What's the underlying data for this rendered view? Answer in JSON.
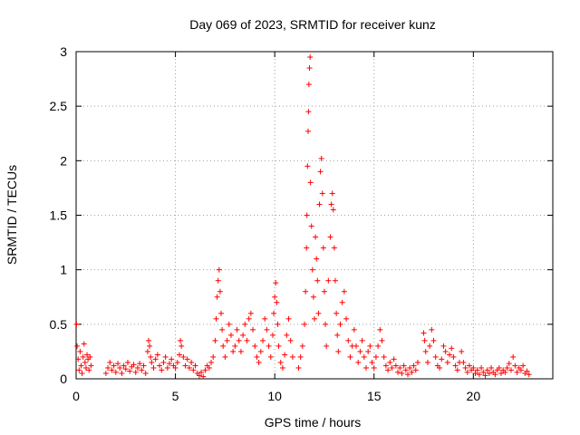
{
  "chart_data": {
    "type": "scatter",
    "title": "Day 069 of 2023, SRMTID for receiver kunz",
    "xlabel": "GPS time / hours",
    "ylabel": "SRMTID / TECUs",
    "xlim": [
      0,
      24
    ],
    "ylim": [
      0,
      3
    ],
    "xticks": [
      0,
      5,
      10,
      15,
      20
    ],
    "yticks": [
      0,
      0.5,
      1,
      1.5,
      2,
      2.5,
      3
    ],
    "xtick_labels": [
      "0",
      "5",
      "10",
      "15",
      "20"
    ],
    "ytick_labels": [
      "0",
      "0.5",
      "1",
      "1.5",
      "2",
      "2.5",
      "3"
    ],
    "grid": true,
    "marker": "+",
    "color": "#ff0000",
    "series": [
      {
        "name": "SRMTID",
        "points": [
          [
            0.02,
            0.5
          ],
          [
            0.05,
            0.3
          ],
          [
            0.1,
            0.18
          ],
          [
            0.15,
            0.08
          ],
          [
            0.2,
            0.25
          ],
          [
            0.25,
            0.12
          ],
          [
            0.3,
            0.05
          ],
          [
            0.35,
            0.2
          ],
          [
            0.4,
            0.32
          ],
          [
            0.45,
            0.15
          ],
          [
            0.5,
            0.1
          ],
          [
            0.55,
            0.22
          ],
          [
            0.6,
            0.18
          ],
          [
            0.65,
            0.08
          ],
          [
            0.7,
            0.2
          ],
          [
            0.75,
            0.12
          ],
          [
            1.5,
            0.05
          ],
          [
            1.6,
            0.1
          ],
          [
            1.7,
            0.15
          ],
          [
            1.8,
            0.08
          ],
          [
            1.9,
            0.12
          ],
          [
            2.0,
            0.06
          ],
          [
            2.1,
            0.14
          ],
          [
            2.2,
            0.1
          ],
          [
            2.3,
            0.05
          ],
          [
            2.4,
            0.12
          ],
          [
            2.5,
            0.09
          ],
          [
            2.6,
            0.15
          ],
          [
            2.7,
            0.07
          ],
          [
            2.8,
            0.11
          ],
          [
            2.9,
            0.13
          ],
          [
            3.0,
            0.06
          ],
          [
            3.1,
            0.1
          ],
          [
            3.2,
            0.14
          ],
          [
            3.3,
            0.08
          ],
          [
            3.4,
            0.12
          ],
          [
            3.5,
            0.05
          ],
          [
            3.6,
            0.25
          ],
          [
            3.65,
            0.35
          ],
          [
            3.7,
            0.3
          ],
          [
            3.75,
            0.2
          ],
          [
            3.8,
            0.15
          ],
          [
            3.9,
            0.1
          ],
          [
            4.0,
            0.18
          ],
          [
            4.1,
            0.22
          ],
          [
            4.2,
            0.12
          ],
          [
            4.3,
            0.08
          ],
          [
            4.4,
            0.15
          ],
          [
            4.5,
            0.2
          ],
          [
            4.6,
            0.1
          ],
          [
            4.7,
            0.14
          ],
          [
            4.8,
            0.18
          ],
          [
            4.9,
            0.12
          ],
          [
            5.0,
            0.1
          ],
          [
            5.1,
            0.15
          ],
          [
            5.2,
            0.22
          ],
          [
            5.25,
            0.35
          ],
          [
            5.3,
            0.3
          ],
          [
            5.4,
            0.2
          ],
          [
            5.5,
            0.12
          ],
          [
            5.6,
            0.18
          ],
          [
            5.7,
            0.1
          ],
          [
            5.8,
            0.15
          ],
          [
            5.9,
            0.08
          ],
          [
            6.0,
            0.12
          ],
          [
            6.1,
            0.05
          ],
          [
            6.2,
            0.03
          ],
          [
            6.3,
            0.06
          ],
          [
            6.4,
            0.02
          ],
          [
            6.5,
            0.08
          ],
          [
            6.6,
            0.12
          ],
          [
            6.7,
            0.1
          ],
          [
            6.8,
            0.15
          ],
          [
            6.9,
            0.2
          ],
          [
            7.0,
            0.35
          ],
          [
            7.05,
            0.55
          ],
          [
            7.1,
            0.75
          ],
          [
            7.15,
            0.9
          ],
          [
            7.2,
            1.0
          ],
          [
            7.25,
            0.8
          ],
          [
            7.3,
            0.6
          ],
          [
            7.35,
            0.45
          ],
          [
            7.4,
            0.3
          ],
          [
            7.5,
            0.2
          ],
          [
            7.6,
            0.35
          ],
          [
            7.7,
            0.5
          ],
          [
            7.8,
            0.4
          ],
          [
            7.9,
            0.25
          ],
          [
            8.0,
            0.3
          ],
          [
            8.1,
            0.45
          ],
          [
            8.2,
            0.35
          ],
          [
            8.3,
            0.25
          ],
          [
            8.4,
            0.4
          ],
          [
            8.5,
            0.5
          ],
          [
            8.6,
            0.35
          ],
          [
            8.7,
            0.55
          ],
          [
            8.8,
            0.6
          ],
          [
            8.9,
            0.45
          ],
          [
            9.0,
            0.3
          ],
          [
            9.1,
            0.2
          ],
          [
            9.2,
            0.15
          ],
          [
            9.3,
            0.25
          ],
          [
            9.4,
            0.35
          ],
          [
            9.5,
            0.55
          ],
          [
            9.6,
            0.45
          ],
          [
            9.7,
            0.3
          ],
          [
            9.8,
            0.2
          ],
          [
            9.9,
            0.4
          ],
          [
            9.95,
            0.6
          ],
          [
            10.0,
            0.75
          ],
          [
            10.05,
            0.88
          ],
          [
            10.1,
            0.7
          ],
          [
            10.15,
            0.5
          ],
          [
            10.2,
            0.3
          ],
          [
            10.3,
            0.15
          ],
          [
            10.4,
            0.1
          ],
          [
            10.5,
            0.22
          ],
          [
            10.6,
            0.4
          ],
          [
            10.7,
            0.55
          ],
          [
            10.8,
            0.35
          ],
          [
            10.9,
            0.2
          ],
          [
            11.2,
            0.1
          ],
          [
            11.3,
            0.2
          ],
          [
            11.4,
            0.3
          ],
          [
            11.5,
            0.5
          ],
          [
            11.55,
            0.8
          ],
          [
            11.6,
            1.2
          ],
          [
            11.62,
            1.5
          ],
          [
            11.65,
            1.95
          ],
          [
            11.68,
            2.27
          ],
          [
            11.7,
            2.45
          ],
          [
            11.72,
            2.7
          ],
          [
            11.75,
            2.85
          ],
          [
            11.78,
            2.95
          ],
          [
            11.8,
            1.8
          ],
          [
            11.85,
            1.4
          ],
          [
            11.9,
            1.0
          ],
          [
            11.95,
            0.75
          ],
          [
            12.0,
            0.55
          ],
          [
            12.05,
            1.3
          ],
          [
            12.1,
            1.1
          ],
          [
            12.15,
            0.9
          ],
          [
            12.2,
            0.6
          ],
          [
            12.25,
            1.6
          ],
          [
            12.3,
            1.9
          ],
          [
            12.35,
            2.02
          ],
          [
            12.4,
            1.7
          ],
          [
            12.45,
            1.2
          ],
          [
            12.5,
            0.8
          ],
          [
            12.55,
            0.5
          ],
          [
            12.6,
            0.3
          ],
          [
            12.7,
            0.9
          ],
          [
            12.8,
            1.3
          ],
          [
            12.85,
            1.6
          ],
          [
            12.9,
            1.7
          ],
          [
            12.95,
            1.55
          ],
          [
            13.0,
            1.2
          ],
          [
            13.05,
            0.9
          ],
          [
            13.1,
            0.6
          ],
          [
            13.15,
            0.4
          ],
          [
            13.2,
            0.25
          ],
          [
            13.3,
            0.5
          ],
          [
            13.4,
            0.7
          ],
          [
            13.5,
            0.8
          ],
          [
            13.6,
            0.55
          ],
          [
            13.7,
            0.35
          ],
          [
            13.8,
            0.2
          ],
          [
            13.9,
            0.3
          ],
          [
            14.0,
            0.45
          ],
          [
            14.1,
            0.3
          ],
          [
            14.2,
            0.15
          ],
          [
            14.3,
            0.25
          ],
          [
            14.4,
            0.35
          ],
          [
            14.5,
            0.2
          ],
          [
            14.6,
            0.1
          ],
          [
            14.7,
            0.25
          ],
          [
            14.8,
            0.3
          ],
          [
            14.9,
            0.15
          ],
          [
            15.0,
            0.1
          ],
          [
            15.1,
            0.2
          ],
          [
            15.2,
            0.3
          ],
          [
            15.3,
            0.45
          ],
          [
            15.4,
            0.35
          ],
          [
            15.5,
            0.2
          ],
          [
            15.6,
            0.12
          ],
          [
            15.7,
            0.08
          ],
          [
            15.8,
            0.15
          ],
          [
            15.9,
            0.1
          ],
          [
            16.0,
            0.18
          ],
          [
            16.1,
            0.12
          ],
          [
            16.2,
            0.06
          ],
          [
            16.3,
            0.1
          ],
          [
            16.4,
            0.05
          ],
          [
            16.5,
            0.12
          ],
          [
            16.6,
            0.08
          ],
          [
            16.7,
            0.04
          ],
          [
            16.8,
            0.1
          ],
          [
            16.9,
            0.06
          ],
          [
            17.0,
            0.12
          ],
          [
            17.1,
            0.08
          ],
          [
            17.2,
            0.15
          ],
          [
            17.5,
            0.42
          ],
          [
            17.55,
            0.35
          ],
          [
            17.6,
            0.25
          ],
          [
            17.7,
            0.15
          ],
          [
            17.8,
            0.3
          ],
          [
            17.9,
            0.45
          ],
          [
            18.0,
            0.35
          ],
          [
            18.1,
            0.2
          ],
          [
            18.2,
            0.12
          ],
          [
            18.3,
            0.1
          ],
          [
            18.4,
            0.18
          ],
          [
            18.5,
            0.3
          ],
          [
            18.6,
            0.25
          ],
          [
            18.7,
            0.15
          ],
          [
            18.8,
            0.22
          ],
          [
            18.9,
            0.28
          ],
          [
            19.0,
            0.2
          ],
          [
            19.1,
            0.12
          ],
          [
            19.2,
            0.08
          ],
          [
            19.3,
            0.15
          ],
          [
            19.4,
            0.25
          ],
          [
            19.5,
            0.15
          ],
          [
            19.6,
            0.1
          ],
          [
            19.7,
            0.06
          ],
          [
            19.8,
            0.12
          ],
          [
            19.9,
            0.08
          ],
          [
            20.0,
            0.1
          ],
          [
            20.1,
            0.05
          ],
          [
            20.2,
            0.08
          ],
          [
            20.3,
            0.04
          ],
          [
            20.4,
            0.1
          ],
          [
            20.5,
            0.06
          ],
          [
            20.6,
            0.03
          ],
          [
            20.7,
            0.08
          ],
          [
            20.8,
            0.05
          ],
          [
            20.9,
            0.1
          ],
          [
            21.0,
            0.06
          ],
          [
            21.1,
            0.04
          ],
          [
            21.2,
            0.08
          ],
          [
            21.3,
            0.1
          ],
          [
            21.4,
            0.05
          ],
          [
            21.5,
            0.08
          ],
          [
            21.6,
            0.06
          ],
          [
            21.7,
            0.1
          ],
          [
            21.8,
            0.14
          ],
          [
            21.9,
            0.08
          ],
          [
            22.0,
            0.2
          ],
          [
            22.1,
            0.12
          ],
          [
            22.2,
            0.06
          ],
          [
            22.3,
            0.1
          ],
          [
            22.4,
            0.08
          ],
          [
            22.5,
            0.12
          ],
          [
            22.6,
            0.05
          ],
          [
            22.7,
            0.07
          ],
          [
            22.8,
            0.04
          ]
        ]
      }
    ]
  }
}
